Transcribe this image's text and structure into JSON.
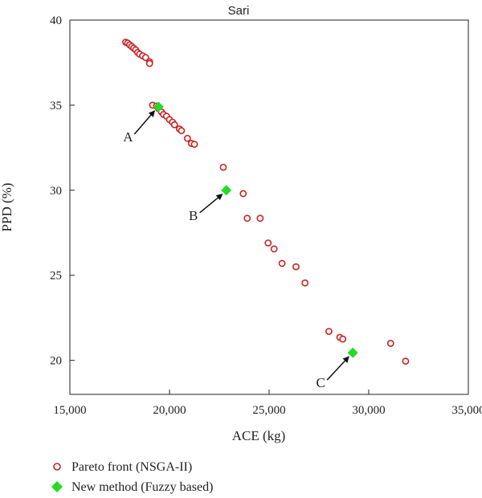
{
  "chart_data": {
    "type": "scatter",
    "title": "Sari",
    "xlabel": "ACE (kg)",
    "ylabel": "PPD (%)",
    "xlim": [
      15000,
      35000
    ],
    "ylim": [
      18,
      40
    ],
    "xticks": [
      15000,
      20000,
      25000,
      30000,
      35000
    ],
    "xtick_labels": [
      "15,000",
      "20,000",
      "25,000",
      "30,000",
      "35,000"
    ],
    "yticks": [
      20,
      25,
      30,
      35,
      40
    ],
    "ytick_labels": [
      "20",
      "25",
      "30",
      "35",
      "40"
    ],
    "grid": false,
    "legend": "bottom-left, below plot",
    "series": [
      {
        "name": "Pareto front (NSGA-II)",
        "marker": "open-circle",
        "color": "#cc2222",
        "points": [
          [
            17800,
            38.7
          ],
          [
            17900,
            38.65
          ],
          [
            18000,
            38.55
          ],
          [
            18100,
            38.45
          ],
          [
            18200,
            38.35
          ],
          [
            18300,
            38.25
          ],
          [
            18400,
            38.1
          ],
          [
            18500,
            38.0
          ],
          [
            18650,
            37.9
          ],
          [
            18800,
            37.8
          ],
          [
            19000,
            37.55
          ],
          [
            19000,
            37.45
          ],
          [
            19150,
            35.0
          ],
          [
            19350,
            34.95
          ],
          [
            19450,
            34.8
          ],
          [
            19600,
            34.6
          ],
          [
            19700,
            34.45
          ],
          [
            19850,
            34.35
          ],
          [
            20000,
            34.15
          ],
          [
            20150,
            34.0
          ],
          [
            20250,
            33.85
          ],
          [
            20500,
            33.6
          ],
          [
            20600,
            33.5
          ],
          [
            20900,
            33.05
          ],
          [
            21100,
            32.75
          ],
          [
            21250,
            32.7
          ],
          [
            22700,
            31.35
          ],
          [
            23700,
            29.8
          ],
          [
            23900,
            28.35
          ],
          [
            24550,
            28.35
          ],
          [
            24950,
            26.9
          ],
          [
            25250,
            26.55
          ],
          [
            25650,
            25.7
          ],
          [
            26350,
            25.5
          ],
          [
            26800,
            24.55
          ],
          [
            28000,
            21.7
          ],
          [
            28550,
            21.35
          ],
          [
            28700,
            21.25
          ],
          [
            31100,
            21.0
          ],
          [
            31850,
            19.95
          ]
        ]
      },
      {
        "name": "New method (Fuzzy based)",
        "marker": "filled-diamond",
        "color": "#22dd22",
        "points": [
          [
            19450,
            34.9
          ],
          [
            22850,
            30.0
          ],
          [
            29200,
            20.45
          ]
        ]
      }
    ],
    "annotations": [
      {
        "text": "A",
        "target": [
          19450,
          34.9
        ]
      },
      {
        "text": "B",
        "target": [
          22850,
          30.0
        ]
      },
      {
        "text": "C",
        "target": [
          29200,
          20.45
        ]
      }
    ]
  }
}
